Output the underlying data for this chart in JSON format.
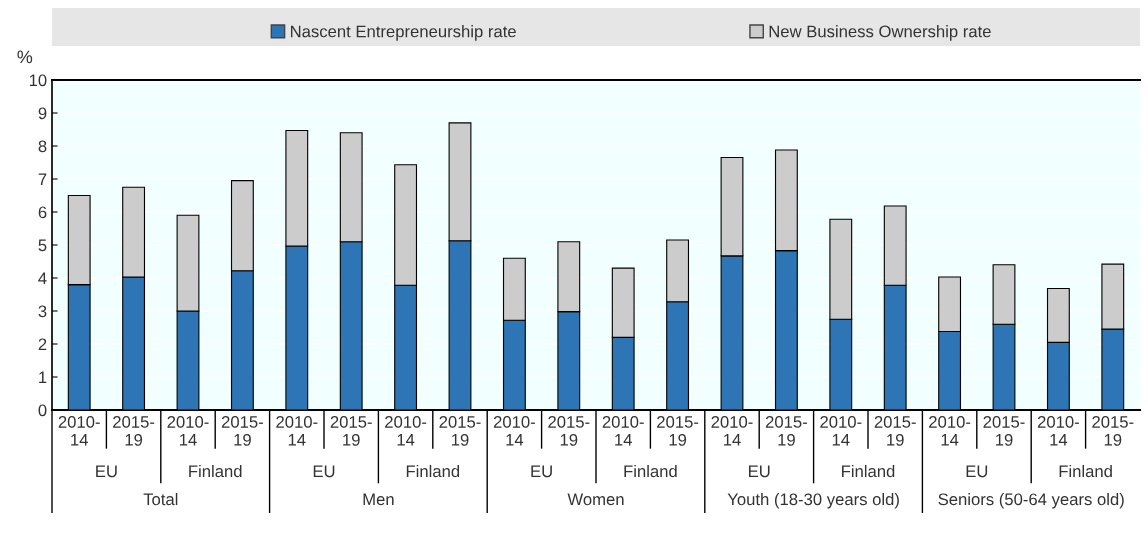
{
  "chart_data": {
    "type": "bar",
    "stacked": true,
    "ylabel": "%",
    "ylim": [
      0,
      10
    ],
    "yticks": [
      0,
      1,
      2,
      3,
      4,
      5,
      6,
      7,
      8,
      9,
      10
    ],
    "grid": "y",
    "legend": "top",
    "categories": [
      "2010-\n14",
      "2015-\n19",
      "2010-\n14",
      "2015-\n19",
      "2010-\n14",
      "2015-\n19",
      "2010-\n14",
      "2015-\n19",
      "2010-\n14",
      "2015-\n19",
      "2010-\n14",
      "2015-\n19",
      "2010-\n14",
      "2015-\n19",
      "2010-\n14",
      "2015-\n19",
      "2010-\n14",
      "2015-\n19",
      "2010-\n14",
      "2015-\n19"
    ],
    "series": [
      {
        "name": "Nascent Entrepreneurship rate",
        "color": "#2e75b6",
        "values": [
          3.8,
          4.03,
          3.0,
          4.22,
          4.97,
          5.1,
          3.78,
          5.13,
          2.72,
          2.98,
          2.2,
          3.28,
          4.67,
          4.83,
          2.75,
          3.78,
          2.38,
          2.6,
          2.05,
          2.45
        ]
      },
      {
        "name": "New Business Ownership rate",
        "color": "#cccccc",
        "values": [
          2.7,
          2.72,
          2.9,
          2.73,
          3.5,
          3.3,
          3.65,
          3.57,
          1.88,
          2.12,
          2.1,
          1.87,
          2.98,
          3.05,
          3.03,
          2.4,
          1.65,
          1.8,
          1.63,
          1.97
        ]
      }
    ],
    "annotations": [
      "EU",
      "Finland",
      "EU",
      "Finland",
      "EU",
      "Finland",
      "EU",
      "Finland",
      "EU",
      "Finland",
      "Total",
      "Men",
      "Women",
      "Youth (18-30 years old)",
      "Seniors (50-64 years old)"
    ]
  }
}
